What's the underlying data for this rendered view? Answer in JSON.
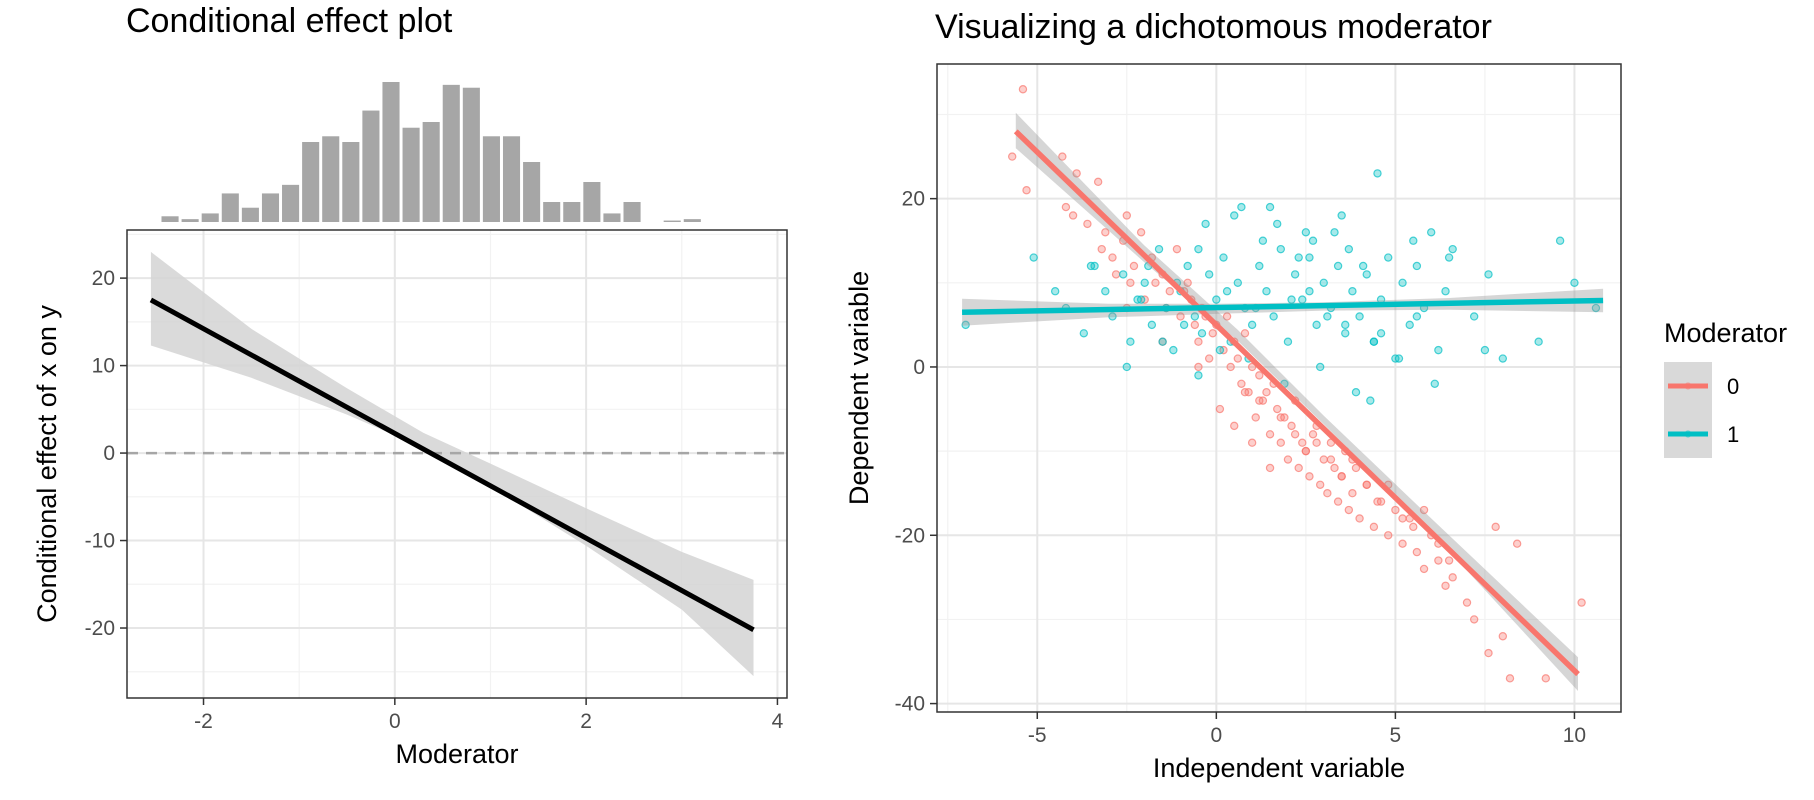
{
  "chart_data": [
    {
      "type": "line",
      "title": "Conditional effect plot",
      "xlabel": "Moderator",
      "ylabel": "Conditional effect of x on y",
      "xlim": [
        -2.8,
        4.1
      ],
      "ylim": [
        -28,
        25.5
      ],
      "x_ticks": [
        -2,
        0,
        2,
        4
      ],
      "x_tick_labels": [
        "-2",
        "0",
        "2",
        "4"
      ],
      "y_ticks": [
        -20,
        -10,
        0,
        10,
        20
      ],
      "y_tick_labels": [
        "-20",
        "-10",
        "0",
        "10",
        "20"
      ],
      "grid": true,
      "reference_line": {
        "y": 0,
        "style": "dashed",
        "color": "#a6a6a6"
      },
      "line": {
        "x": [
          -2.55,
          3.75
        ],
        "y": [
          17.5,
          -20.2
        ],
        "color": "#000000"
      },
      "ribbon": {
        "x": [
          -2.55,
          -1.5,
          -0.5,
          0.3,
          1.0,
          2.0,
          3.0,
          3.75
        ],
        "lower": [
          12.3,
          8.6,
          4.4,
          0.6,
          -3.8,
          -10.6,
          -17.9,
          -25.5
        ],
        "upper": [
          23.0,
          14.2,
          7.4,
          2.3,
          -1.2,
          -6.3,
          -11.3,
          -14.5
        ],
        "color": "#d3d3d3"
      },
      "histogram": {
        "bin_centers": [
          -2.35,
          -2.14,
          -1.93,
          -1.72,
          -1.51,
          -1.3,
          -1.09,
          -0.88,
          -0.67,
          -0.46,
          -0.25,
          -0.04,
          0.17,
          0.38,
          0.59,
          0.8,
          1.01,
          1.22,
          1.43,
          1.64,
          1.85,
          2.06,
          2.27,
          2.48,
          2.69,
          2.9,
          3.11,
          3.32
        ],
        "counts": [
          2,
          1,
          3,
          10,
          5,
          10,
          13,
          28,
          30,
          28,
          39,
          49,
          33,
          35,
          48,
          47,
          30,
          30,
          21,
          7,
          7,
          14,
          3,
          7,
          0,
          0.5,
          1,
          0
        ],
        "color": "#a6a6a6"
      }
    },
    {
      "type": "scatter",
      "title": "Visualizing a dichotomous moderator",
      "xlabel": "Independent variable",
      "ylabel": "Dependent variable",
      "xlim": [
        -7.8,
        11.3
      ],
      "ylim": [
        -41,
        36
      ],
      "x_ticks": [
        -5,
        0,
        5,
        10
      ],
      "x_tick_labels": [
        "-5",
        "0",
        "5",
        "10"
      ],
      "y_ticks": [
        -40,
        -20,
        0,
        20
      ],
      "y_tick_labels": [
        "-40",
        "-20",
        "0",
        "20"
      ],
      "grid": true,
      "legend": {
        "title": "Moderator",
        "position": "right",
        "entries": [
          "0",
          "1"
        ]
      },
      "series": [
        {
          "name": "0",
          "color": "#f8766d",
          "fit": {
            "x": [
              -5.6,
              10.1
            ],
            "y": [
              28,
              -36.5
            ]
          },
          "ribbon": {
            "x": [
              -5.6,
              -2.0,
              0.6,
              3.0,
              6.0,
              10.1
            ],
            "lower": [
              26.0,
              12.4,
              3.1,
              -6.8,
              -19.6,
              -38.5
            ],
            "upper": [
              30.2,
              14.4,
              4.4,
              -5.8,
              -18.0,
              -34.5
            ]
          },
          "points": {
            "x": [
              -5.4,
              -5.7,
              -5.3,
              -4.3,
              -4.2,
              -4.0,
              -3.9,
              -3.6,
              -3.3,
              -3.2,
              -3.1,
              -2.9,
              -2.8,
              -2.6,
              -2.5,
              -2.4,
              -2.3,
              -2.1,
              -2.0,
              -1.8,
              -1.7,
              -1.5,
              -1.4,
              -1.3,
              -1.1,
              -1.0,
              -0.9,
              -0.8,
              -0.7,
              -0.6,
              -0.5,
              -0.4,
              -0.3,
              -0.2,
              -0.1,
              0.0,
              0.1,
              0.2,
              0.3,
              0.4,
              0.5,
              0.6,
              0.7,
              0.8,
              0.9,
              1.0,
              1.1,
              1.2,
              1.3,
              1.4,
              1.5,
              1.6,
              1.7,
              1.8,
              1.9,
              2.0,
              2.1,
              2.2,
              2.3,
              2.4,
              2.5,
              2.6,
              2.7,
              2.8,
              2.9,
              3.0,
              3.1,
              3.2,
              3.3,
              3.4,
              3.5,
              3.6,
              3.7,
              3.8,
              3.9,
              4.0,
              4.2,
              4.4,
              4.6,
              4.8,
              5.0,
              5.2,
              5.4,
              5.6,
              5.8,
              6.0,
              6.2,
              6.4,
              6.6,
              7.0,
              7.2,
              7.6,
              8.0,
              8.2,
              9.2,
              10.2,
              8.4,
              7.8,
              0.5,
              1.0,
              1.5,
              2.5,
              3.5,
              4.5,
              5.5,
              6.5,
              0.8,
              1.8,
              2.8,
              3.8,
              4.8,
              5.8,
              -0.5,
              -1.5,
              -2.5,
              1.2,
              2.2,
              3.2,
              4.2,
              5.2,
              6.2
            ],
            "y": [
              33,
              25,
              21,
              25,
              19,
              18,
              23,
              17,
              22,
              14,
              16,
              13,
              11,
              15,
              18,
              10,
              12,
              16,
              8,
              13,
              10,
              11,
              7,
              9,
              14,
              6,
              9,
              10,
              8,
              5,
              3,
              7,
              6,
              1,
              4,
              5,
              -5,
              2,
              6,
              0,
              3,
              1,
              -2,
              4,
              -3,
              0,
              -6,
              -1,
              -4,
              -3,
              -8,
              -2,
              -5,
              -9,
              -6,
              -11,
              -7,
              -4,
              -12,
              -9,
              -10,
              -13,
              -8,
              -7,
              -14,
              -11,
              -15,
              -9,
              -12,
              -16,
              -13,
              -10,
              -17,
              -15,
              -12,
              -18,
              -14,
              -19,
              -16,
              -20,
              -17,
              -21,
              -18,
              -22,
              -24,
              -20,
              -23,
              -26,
              -25,
              -28,
              -30,
              -34,
              -32,
              -37,
              -37,
              -28,
              -21,
              -19,
              -7,
              -9,
              -12,
              -10,
              -13,
              -16,
              -19,
              -23,
              -3,
              -6,
              -9,
              -11,
              -14,
              -17,
              0,
              3,
              7,
              -4,
              -8,
              -11,
              -14,
              -18,
              -21
            ]
          }
        },
        {
          "name": "1",
          "color": "#00bfc4",
          "fit": {
            "x": [
              -7.1,
              10.8
            ],
            "y": [
              6.5,
              7.9
            ]
          },
          "ribbon": {
            "x": [
              -7.1,
              -3.0,
              0.0,
              3.0,
              6.5,
              10.8
            ],
            "lower": [
              4.9,
              5.9,
              6.3,
              6.7,
              6.8,
              6.5
            ],
            "upper": [
              8.1,
              7.5,
              7.5,
              7.7,
              8.2,
              9.3
            ]
          },
          "points": {
            "x": [
              -7.0,
              -5.1,
              -4.2,
              -3.7,
              -3.4,
              -3.1,
              -2.9,
              -2.6,
              -2.4,
              -2.2,
              -2.0,
              -1.8,
              -1.6,
              -1.4,
              -1.2,
              -1.0,
              -0.8,
              -0.6,
              -0.4,
              -0.2,
              0.0,
              0.2,
              0.4,
              0.6,
              0.8,
              1.0,
              1.2,
              1.4,
              1.6,
              1.8,
              2.0,
              2.2,
              2.4,
              2.6,
              2.8,
              3.0,
              3.2,
              3.4,
              3.6,
              3.8,
              4.0,
              4.2,
              4.4,
              4.6,
              4.8,
              5.0,
              5.2,
              5.4,
              5.6,
              5.8,
              6.0,
              6.2,
              6.4,
              6.6,
              7.2,
              7.6,
              8.0,
              9.0,
              9.6,
              10.0,
              10.6,
              -4.5,
              -3.5,
              -2.5,
              -1.5,
              -0.5,
              0.5,
              1.5,
              2.5,
              3.5,
              4.5,
              5.5,
              6.5,
              7.5,
              -0.5,
              0.9,
              1.9,
              2.9,
              3.9,
              4.3,
              5.1,
              6.1,
              -1.1,
              -2.1,
              0.3,
              1.3,
              2.3,
              3.3,
              4.1,
              -0.3,
              0.7,
              1.7,
              2.7,
              3.7,
              2.1,
              3.1,
              4.4,
              -1.9,
              -0.9,
              0.1,
              1.1,
              2.6,
              3.6,
              4.6,
              5.6
            ],
            "y": [
              5,
              13,
              7,
              4,
              12,
              9,
              6,
              11,
              3,
              8,
              10,
              5,
              14,
              7,
              2,
              9,
              12,
              6,
              4,
              11,
              8,
              13,
              3,
              10,
              7,
              5,
              12,
              9,
              6,
              14,
              3,
              11,
              8,
              13,
              5,
              10,
              7,
              12,
              4,
              9,
              6,
              11,
              3,
              8,
              13,
              1,
              10,
              5,
              12,
              7,
              16,
              2,
              9,
              14,
              6,
              11,
              1,
              3,
              15,
              10,
              7,
              9,
              12,
              0,
              3,
              14,
              18,
              19,
              16,
              18,
              23,
              15,
              13,
              2,
              -1,
              1,
              -2,
              0,
              -3,
              -4,
              1,
              -2,
              10,
              8,
              9,
              15,
              13,
              16,
              12,
              17,
              19,
              17,
              15,
              14,
              8,
              6,
              3,
              12,
              5,
              2,
              7,
              9,
              5,
              4,
              6
            ]
          }
        }
      ]
    }
  ]
}
